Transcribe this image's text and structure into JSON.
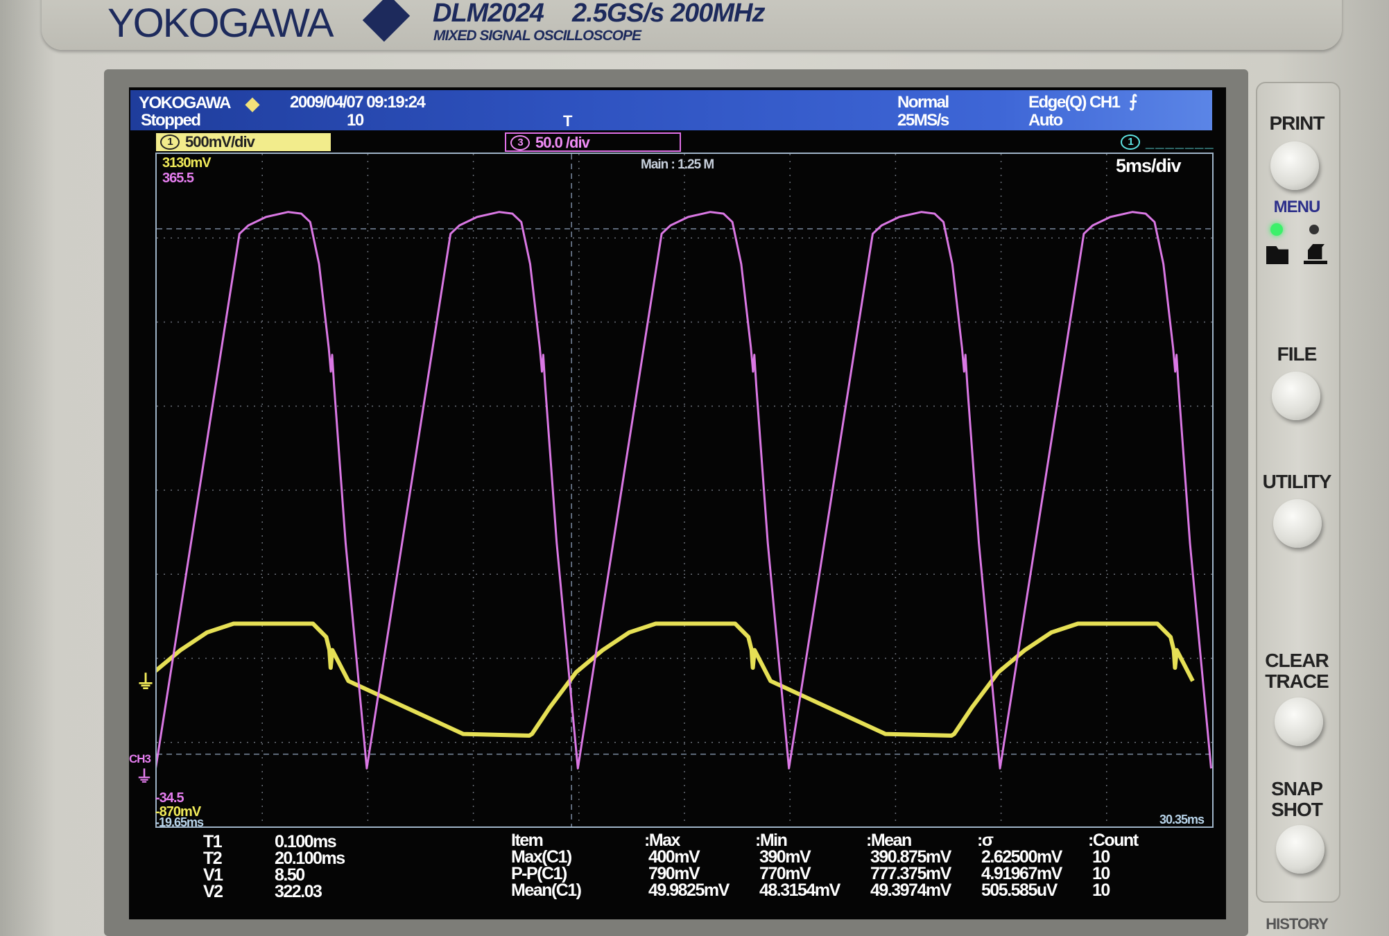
{
  "brand": {
    "name": "YOKOGAWA",
    "model": "DLM2024",
    "spec": "2.5GS/s 200MHz",
    "subtitle": "MIXED SIGNAL OSCILLOSCOPE"
  },
  "header": {
    "logo": "YOKOGAWA",
    "datetime": "2009/04/07  09:19:24",
    "status": "Stopped",
    "acq_count": "10",
    "acq_mode": "Normal",
    "sample_rate": "25MS/s",
    "trigger_type": "Edge(Q) CH1",
    "trigger_mode": "Auto",
    "trigger_slope_icon": "rising-edge-icon"
  },
  "channels": {
    "ch1": {
      "num": "1",
      "scale": "500mV/div",
      "color": "#f2ec5a"
    },
    "ch3": {
      "num": "3",
      "scale": "50.0 /div",
      "color": "#e67ef0"
    },
    "cursor_indicator": "1"
  },
  "display": {
    "ch1_top": "3130mV",
    "ch3_top": "365.5",
    "memory": "Main : 1.25 M",
    "timebase": "5ms/div",
    "ch3_label": "CH3",
    "ch3_bottom": "-34.5",
    "ch1_bottom": "-870mV",
    "time_left": "-19.65ms",
    "time_right": "30.35ms",
    "grid_color": "#6a6f78"
  },
  "chart_data": {
    "type": "line",
    "x_unit": "ms",
    "xlim": [
      -19.65,
      30.35
    ],
    "grid": true,
    "series": [
      {
        "name": "CH3",
        "unit": "",
        "ylim": [
          -34.5,
          365.5
        ],
        "color": "#e67ef0",
        "period_ms": 10,
        "first_min_ms": -19.7,
        "cycle": [
          [
            0,
            0
          ],
          [
            3.97,
            318
          ],
          [
            4.39,
            323
          ],
          [
            5.23,
            328
          ],
          [
            6.28,
            331
          ],
          [
            6.9,
            330
          ],
          [
            7.32,
            325
          ],
          [
            7.74,
            300
          ],
          [
            8.2,
            250
          ],
          [
            8.3,
            236
          ],
          [
            8.36,
            246
          ],
          [
            8.45,
            228
          ],
          [
            9.0,
            134
          ],
          [
            10,
            0
          ]
        ]
      },
      {
        "name": "CH1",
        "unit": "mV",
        "ylim": [
          -870,
          3130
        ],
        "color": "#f2ec5a",
        "period_ms": 20,
        "first_start_ms": -21.87,
        "cycle": [
          [
            0,
            -320
          ],
          [
            0.84,
            -162
          ],
          [
            2.09,
            47
          ],
          [
            3.35,
            179
          ],
          [
            4.6,
            284
          ],
          [
            5.86,
            336
          ],
          [
            9.62,
            336
          ],
          [
            10.25,
            257
          ],
          [
            10.4,
            180
          ],
          [
            10.46,
            74
          ],
          [
            10.54,
            179
          ],
          [
            11.3,
            -5
          ],
          [
            16.74,
            -320
          ],
          [
            19.87,
            -330
          ],
          [
            20,
            -320
          ]
        ]
      }
    ]
  },
  "measurements": {
    "cursors": [
      {
        "label": "T1",
        "value": "0.100ms"
      },
      {
        "label": "T2",
        "value": "20.100ms"
      },
      {
        "label": "V1",
        "value": "8.50"
      },
      {
        "label": "V2",
        "value": "322.03"
      }
    ],
    "headers": [
      "Item",
      ":Max",
      ":Min",
      ":Mean",
      ":σ",
      ":Count"
    ],
    "rows": [
      [
        "Max(C1)",
        "400mV",
        "390mV",
        "390.875mV",
        "2.62500mV",
        "10"
      ],
      [
        "P-P(C1)",
        "790mV",
        "770mV",
        "777.375mV",
        "4.91967mV",
        "10"
      ],
      [
        "Mean(C1)",
        "49.9825mV",
        "48.3154mV",
        "49.3974mV",
        "505.585uV",
        "10"
      ]
    ]
  },
  "panel": {
    "print": "PRINT",
    "menu": "MENU",
    "file": "FILE",
    "utility": "UTILITY",
    "clear_trace": [
      "CLEAR",
      "TRACE"
    ],
    "snap_shot": [
      "SNAP",
      "SHOT"
    ],
    "history": "HISTORY",
    "led_color": "#3cf06a"
  }
}
